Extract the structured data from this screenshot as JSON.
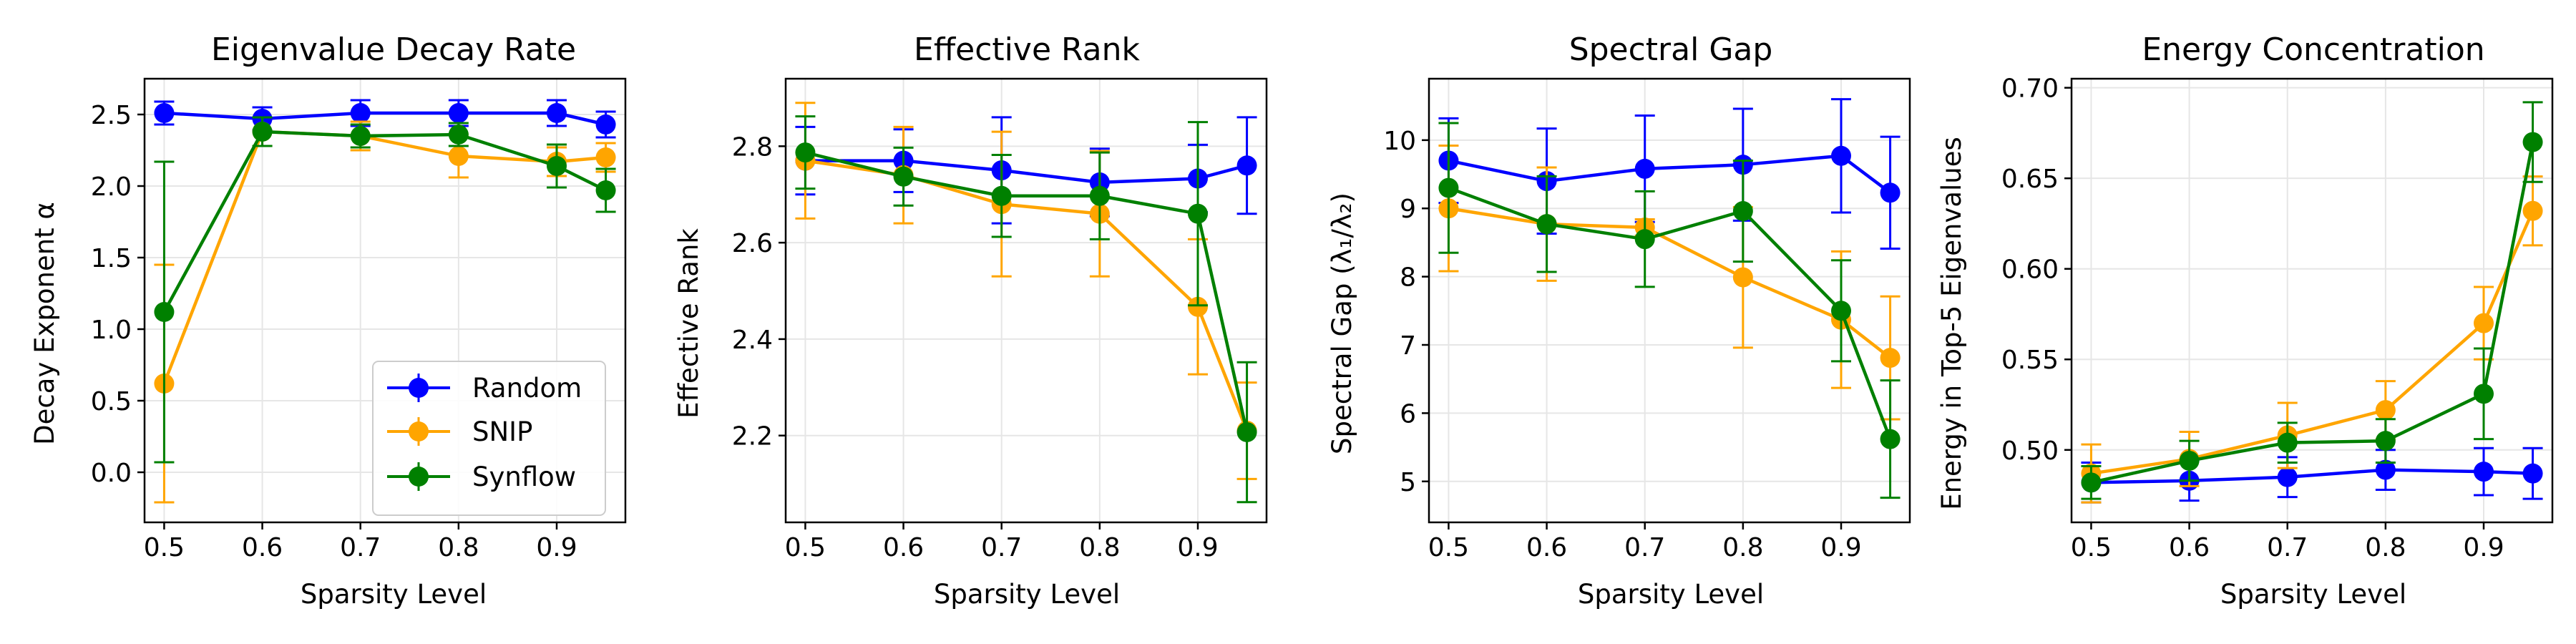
{
  "figure": {
    "background": "#ffffff",
    "series_colors": {
      "Random": "#0000ff",
      "SNIP": "#ffa500",
      "Synflow": "#008000"
    },
    "legend": [
      "Random",
      "SNIP",
      "Synflow"
    ]
  },
  "chart_data": [
    {
      "type": "line",
      "title": "Eigenvalue Decay Rate",
      "xlabel": "Sparsity Level",
      "ylabel": "Decay Exponent α",
      "x": [
        0.5,
        0.6,
        0.7,
        0.8,
        0.9,
        0.95
      ],
      "xlim": [
        0.48,
        0.97
      ],
      "ylim": [
        -0.35,
        2.75
      ],
      "xticks": [
        0.5,
        0.6,
        0.7,
        0.8,
        0.9
      ],
      "xtick_labels": [
        "0.5",
        "0.6",
        "0.7",
        "0.8",
        "0.9"
      ],
      "yticks": [
        0.0,
        0.5,
        1.0,
        1.5,
        2.0,
        2.5
      ],
      "ytick_labels": [
        "0.0",
        "0.5",
        "1.0",
        "1.5",
        "2.0",
        "2.5"
      ],
      "grid": true,
      "legend_position": "bottom-right",
      "series": [
        {
          "name": "Random",
          "color": "#0000ff",
          "values": [
            2.51,
            2.47,
            2.51,
            2.51,
            2.51,
            2.43
          ],
          "errors": [
            0.08,
            0.08,
            0.09,
            0.09,
            0.09,
            0.09
          ]
        },
        {
          "name": "SNIP",
          "color": "#ffa500",
          "values": [
            0.62,
            2.38,
            2.35,
            2.21,
            2.17,
            2.2
          ],
          "errors": [
            0.83,
            0.1,
            0.1,
            0.15,
            0.1,
            0.1
          ]
        },
        {
          "name": "Synflow",
          "color": "#008000",
          "values": [
            1.12,
            2.38,
            2.35,
            2.36,
            2.14,
            1.97
          ],
          "errors": [
            1.05,
            0.1,
            0.08,
            0.08,
            0.15,
            0.15
          ]
        }
      ]
    },
    {
      "type": "line",
      "title": "Effective Rank",
      "xlabel": "Sparsity Level",
      "ylabel": "Effective Rank",
      "x": [
        0.5,
        0.6,
        0.7,
        0.8,
        0.9,
        0.95
      ],
      "xlim": [
        0.48,
        0.97
      ],
      "ylim": [
        2.02,
        2.94
      ],
      "xticks": [
        0.5,
        0.6,
        0.7,
        0.8,
        0.9
      ],
      "xtick_labels": [
        "0.5",
        "0.6",
        "0.7",
        "0.8",
        "0.9"
      ],
      "yticks": [
        2.2,
        2.4,
        2.6,
        2.8
      ],
      "ytick_labels": [
        "2.2",
        "2.4",
        "2.6",
        "2.8"
      ],
      "grid": true,
      "series": [
        {
          "name": "Random",
          "color": "#0000ff",
          "values": [
            2.77,
            2.77,
            2.75,
            2.725,
            2.733,
            2.76
          ],
          "errors": [
            0.07,
            0.065,
            0.11,
            0.07,
            0.07,
            0.1
          ]
        },
        {
          "name": "SNIP",
          "color": "#ffa500",
          "values": [
            2.77,
            2.74,
            2.68,
            2.66,
            2.467,
            2.21
          ],
          "errors": [
            0.12,
            0.1,
            0.15,
            0.13,
            0.14,
            0.1
          ]
        },
        {
          "name": "Synflow",
          "color": "#008000",
          "values": [
            2.787,
            2.737,
            2.697,
            2.697,
            2.66,
            2.207
          ],
          "errors": [
            0.075,
            0.06,
            0.085,
            0.09,
            0.19,
            0.145
          ]
        }
      ]
    },
    {
      "type": "line",
      "title": "Spectral Gap",
      "xlabel": "Sparsity Level",
      "ylabel": "Spectral Gap (λ₁/λ₂)",
      "x": [
        0.5,
        0.6,
        0.7,
        0.8,
        0.9,
        0.95
      ],
      "xlim": [
        0.48,
        0.97
      ],
      "ylim": [
        4.4,
        10.9
      ],
      "xticks": [
        0.5,
        0.6,
        0.7,
        0.8,
        0.9
      ],
      "xtick_labels": [
        "0.5",
        "0.6",
        "0.7",
        "0.8",
        "0.9"
      ],
      "yticks": [
        5,
        6,
        7,
        8,
        9,
        10
      ],
      "ytick_labels": [
        "5",
        "6",
        "7",
        "8",
        "9",
        "10"
      ],
      "grid": true,
      "series": [
        {
          "name": "Random",
          "color": "#0000ff",
          "values": [
            9.7,
            9.4,
            9.58,
            9.64,
            9.77,
            9.23
          ],
          "errors": [
            0.62,
            0.77,
            0.78,
            0.82,
            0.83,
            0.82
          ]
        },
        {
          "name": "SNIP",
          "color": "#ffa500",
          "values": [
            9.0,
            8.77,
            8.72,
            7.99,
            7.37,
            6.81
          ],
          "errors": [
            0.92,
            0.83,
            0.12,
            1.03,
            1.0,
            0.9
          ]
        },
        {
          "name": "Synflow",
          "color": "#008000",
          "values": [
            9.3,
            8.77,
            8.55,
            8.96,
            7.5,
            5.62
          ],
          "errors": [
            0.95,
            0.7,
            0.7,
            0.74,
            0.74,
            0.86
          ]
        }
      ]
    },
    {
      "type": "line",
      "title": "Energy Concentration",
      "xlabel": "Sparsity Level",
      "ylabel": "Energy in Top-5 Eigenvalues",
      "x": [
        0.5,
        0.6,
        0.7,
        0.8,
        0.9,
        0.95
      ],
      "xlim": [
        0.48,
        0.97
      ],
      "ylim": [
        0.46,
        0.705
      ],
      "xticks": [
        0.5,
        0.6,
        0.7,
        0.8,
        0.9
      ],
      "xtick_labels": [
        "0.5",
        "0.6",
        "0.7",
        "0.8",
        "0.9"
      ],
      "yticks": [
        0.5,
        0.55,
        0.6,
        0.65,
        0.7
      ],
      "ytick_labels": [
        "0.50",
        "0.55",
        "0.60",
        "0.65",
        "0.70"
      ],
      "grid": true,
      "series": [
        {
          "name": "Random",
          "color": "#0000ff",
          "values": [
            0.482,
            0.483,
            0.485,
            0.489,
            0.488,
            0.487
          ],
          "errors": [
            0.011,
            0.011,
            0.011,
            0.011,
            0.013,
            0.014
          ]
        },
        {
          "name": "SNIP",
          "color": "#ffa500",
          "values": [
            0.487,
            0.495,
            0.508,
            0.522,
            0.57,
            0.632
          ],
          "errors": [
            0.016,
            0.015,
            0.018,
            0.016,
            0.02,
            0.019
          ]
        },
        {
          "name": "Synflow",
          "color": "#008000",
          "values": [
            0.482,
            0.494,
            0.504,
            0.505,
            0.531,
            0.67
          ],
          "errors": [
            0.009,
            0.011,
            0.011,
            0.012,
            0.025,
            0.022
          ]
        }
      ]
    }
  ]
}
